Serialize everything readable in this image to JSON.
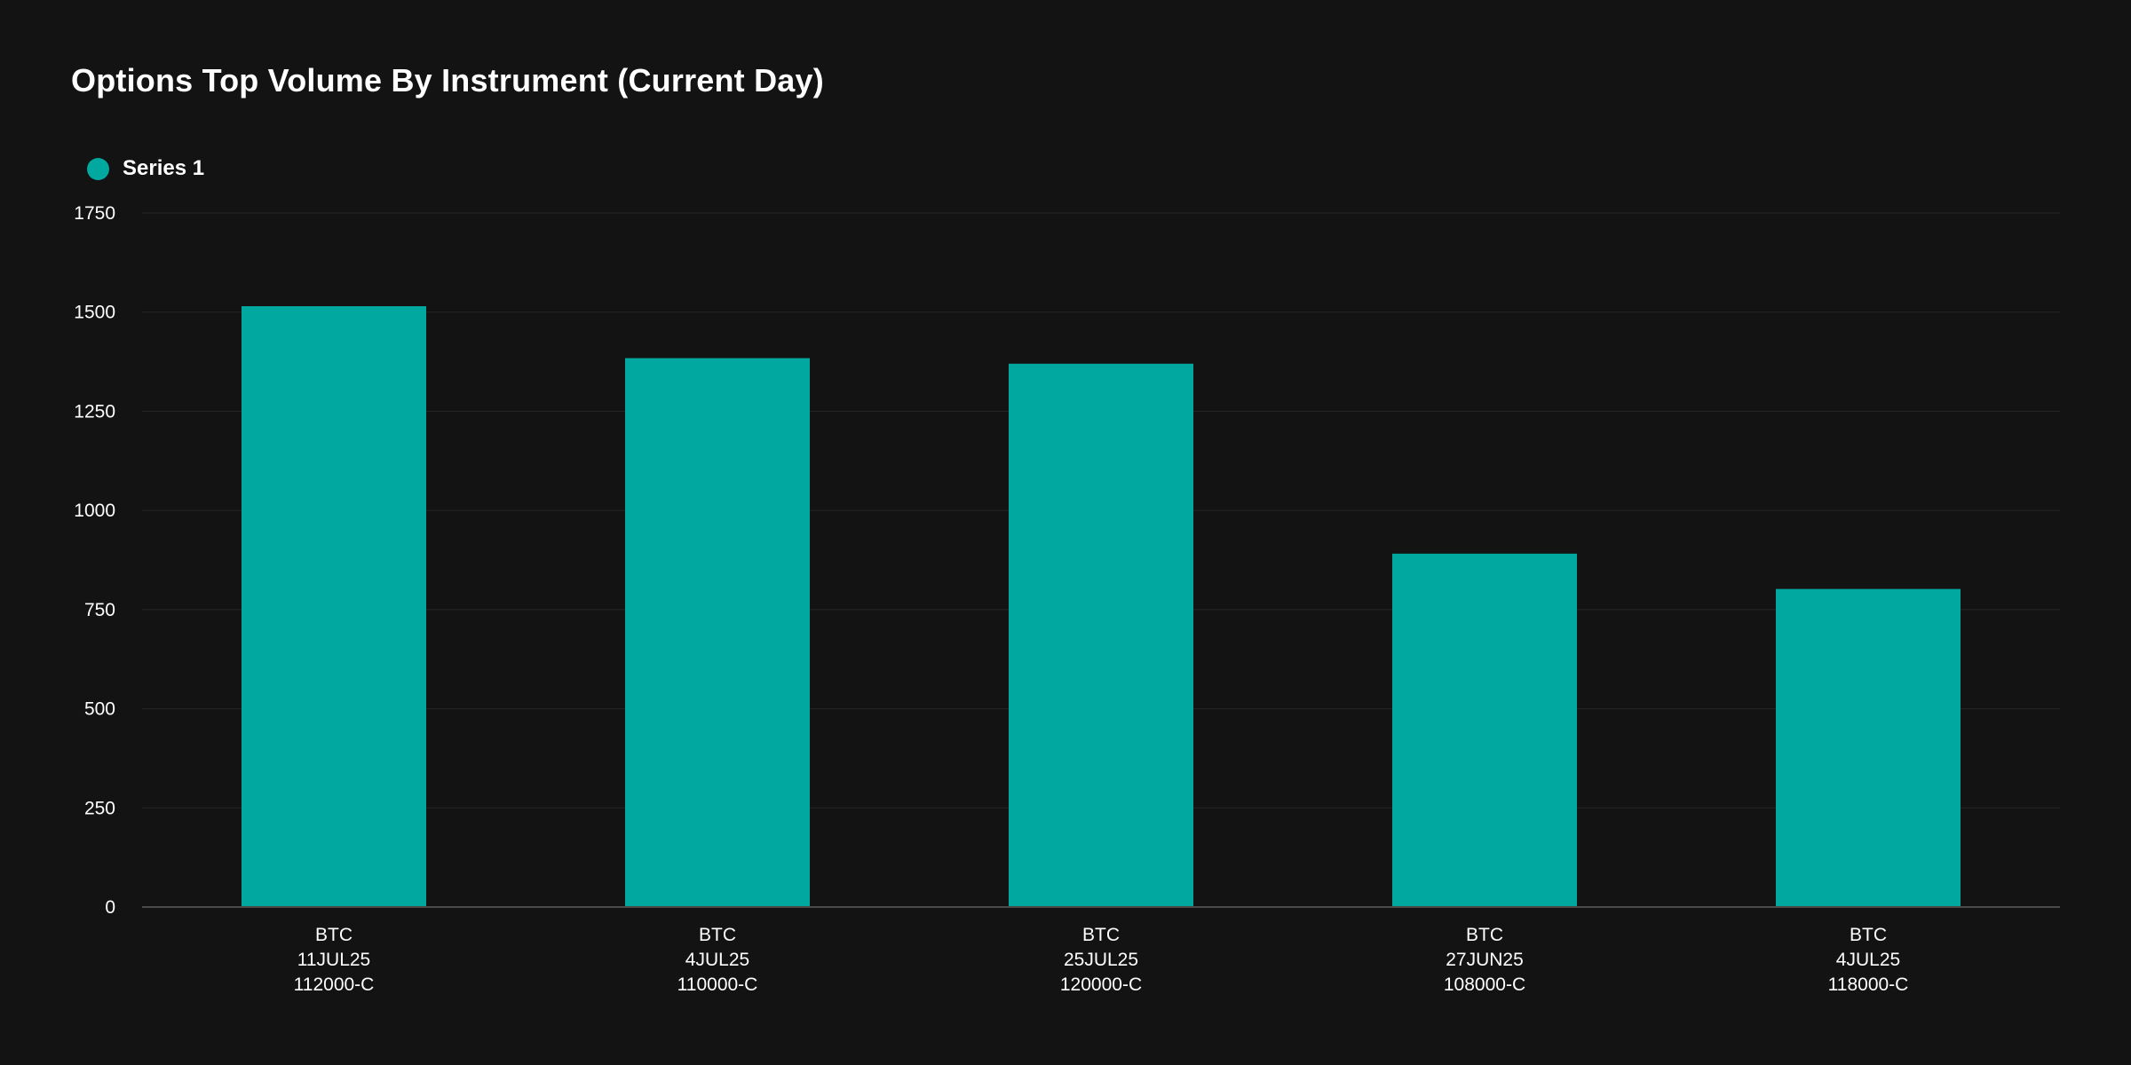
{
  "chart_data": {
    "type": "bar",
    "title": "Options Top Volume By Instrument (Current Day)",
    "xlabel": "",
    "ylabel": "",
    "ylim": [
      0,
      1750
    ],
    "yticks": [
      "0",
      "250",
      "500",
      "750",
      "1000",
      "1250",
      "1500",
      "1750"
    ],
    "grid": true,
    "legend_placement": "top-left",
    "categories": [
      [
        "BTC",
        "11JUL25",
        "112000-C"
      ],
      [
        "BTC",
        "4JUL25",
        "110000-C"
      ],
      [
        "BTC",
        "25JUL25",
        "120000-C"
      ],
      [
        "BTC",
        "27JUN25",
        "108000-C"
      ],
      [
        "BTC",
        "4JUL25",
        "118000-C"
      ]
    ],
    "series": [
      {
        "name": "Series 1",
        "color": "#00a8a0",
        "values": [
          1515,
          1384,
          1370,
          891,
          802
        ]
      }
    ]
  },
  "colors": {
    "background": "#131313",
    "grid": "#262626",
    "axis": "#4a4a4a",
    "bar": "#00a8a0"
  }
}
